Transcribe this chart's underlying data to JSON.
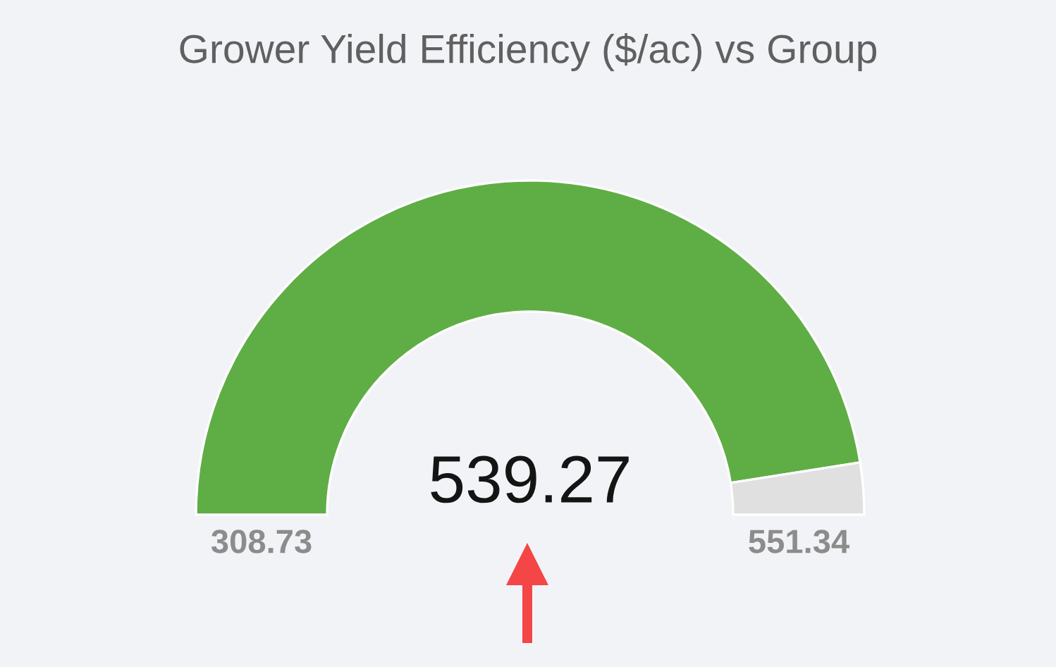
{
  "chart_data": {
    "type": "donut",
    "title": "Grower Yield Efficiency ($/ac) vs Group",
    "categories": [
      null,
      null
    ],
    "values": [
      95,
      5
    ],
    "colors": [
      "#5fae45",
      "#e0e0e0"
    ],
    "annotations": [
      "539.27",
      "308.73",
      "551.34"
    ]
  }
}
